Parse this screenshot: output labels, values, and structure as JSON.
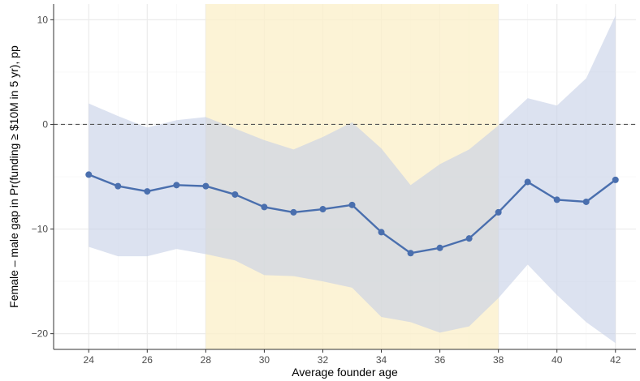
{
  "chart_data": {
    "type": "line",
    "xlabel": "Average founder age",
    "ylabel": "Female – male gap in Pr(funding ≥ $10M in 5 yr), pp",
    "xlim": [
      22.8,
      42.7
    ],
    "ylim": [
      -21.5,
      11.5
    ],
    "x_ticks": [
      24,
      26,
      28,
      30,
      32,
      34,
      36,
      38,
      40,
      42
    ],
    "y_ticks": [
      10,
      0,
      -10,
      -20
    ],
    "y_tick_labels": [
      "10",
      "0",
      "−10",
      "−20"
    ],
    "reference_line_y": 0,
    "highlight_range": [
      28,
      38
    ],
    "grid": true,
    "colors": {
      "line": "#4a6fae",
      "ci_band": "#c5cfe6",
      "highlight": "#fbf0cc",
      "reference_line": "#555555",
      "grid": "#ebebeb"
    },
    "series": [
      {
        "x": [
          24,
          25,
          26,
          27,
          28,
          29,
          30,
          31,
          32,
          33,
          34,
          35,
          36,
          37,
          38,
          39,
          40,
          41,
          42
        ],
        "values": [
          -4.8,
          -5.9,
          -6.4,
          -5.8,
          -5.9,
          -6.7,
          -7.9,
          -8.4,
          -8.1,
          -7.7,
          -10.3,
          -12.3,
          -11.8,
          -10.9,
          -8.4,
          -5.5,
          -7.2,
          -7.4,
          -5.3
        ],
        "ci_upper": [
          2.0,
          0.8,
          -0.3,
          0.4,
          0.7,
          -0.4,
          -1.5,
          -2.4,
          -1.2,
          0.2,
          -2.3,
          -5.8,
          -3.8,
          -2.4,
          -0.1,
          2.5,
          1.8,
          4.4,
          10.4
        ],
        "ci_lower": [
          -11.7,
          -12.6,
          -12.6,
          -11.9,
          -12.4,
          -13.0,
          -14.4,
          -14.5,
          -15.0,
          -15.6,
          -18.4,
          -18.9,
          -19.9,
          -19.3,
          -16.6,
          -13.4,
          -16.3,
          -18.9,
          -20.9
        ]
      }
    ]
  }
}
